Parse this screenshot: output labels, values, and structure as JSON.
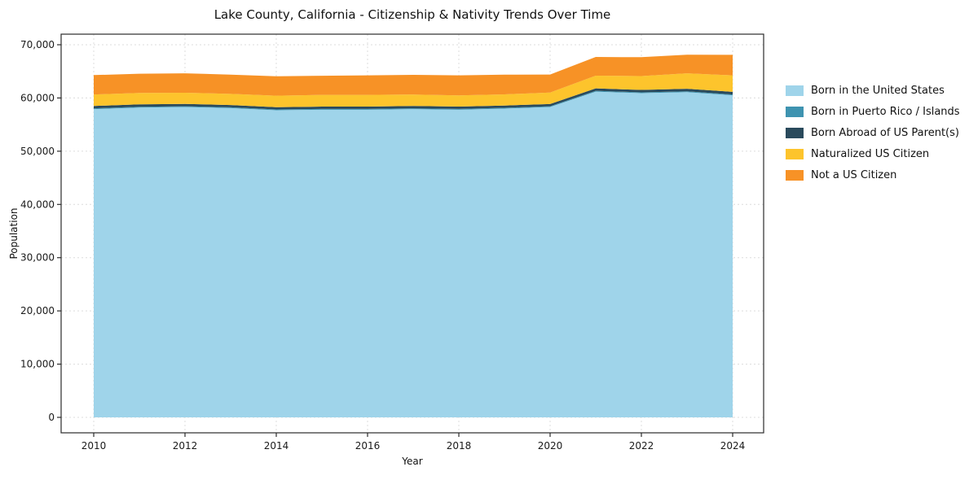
{
  "title": "Lake County, California - Citizenship & Nativity Trends Over Time",
  "chart_data": {
    "type": "area",
    "stacked": true,
    "title": "Lake County, California - Citizenship & Nativity Trends Over Time",
    "xlabel": "Year",
    "ylabel": "Population",
    "x": [
      2010,
      2011,
      2012,
      2013,
      2014,
      2015,
      2016,
      2017,
      2018,
      2019,
      2020,
      2021,
      2022,
      2023,
      2024
    ],
    "xticks": [
      2010,
      2012,
      2014,
      2016,
      2018,
      2020,
      2022,
      2024
    ],
    "yticks": [
      0,
      10000,
      20000,
      30000,
      40000,
      50000,
      60000,
      70000
    ],
    "ylim": [
      0,
      70000
    ],
    "grid": true,
    "legend_position": "right",
    "series": [
      {
        "name": "Born in the United States",
        "color": "#9fd4ea",
        "values": [
          57900,
          58200,
          58300,
          58100,
          57700,
          57800,
          57800,
          57900,
          57800,
          58000,
          58300,
          61200,
          60900,
          61100,
          60500
        ]
      },
      {
        "name": "Born in Puerto Rico / Islands",
        "color": "#3e93b0",
        "values": [
          150,
          150,
          150,
          150,
          150,
          150,
          150,
          150,
          150,
          150,
          150,
          150,
          150,
          150,
          150
        ]
      },
      {
        "name": "Born Abroad of US Parent(s)",
        "color": "#2a4a5c",
        "values": [
          450,
          450,
          440,
          430,
          420,
          430,
          440,
          450,
          440,
          430,
          420,
          450,
          460,
          480,
          500
        ]
      },
      {
        "name": "Naturalized US Citizen",
        "color": "#fdc42c",
        "values": [
          2150,
          2150,
          2100,
          2100,
          2150,
          2200,
          2200,
          2150,
          2100,
          2100,
          2150,
          2400,
          2600,
          2900,
          3100
        ]
      },
      {
        "name": "Not a US Citizen",
        "color": "#f79226",
        "values": [
          3650,
          3600,
          3650,
          3600,
          3650,
          3600,
          3650,
          3700,
          3750,
          3700,
          3380,
          3500,
          3550,
          3500,
          3850
        ]
      }
    ]
  }
}
